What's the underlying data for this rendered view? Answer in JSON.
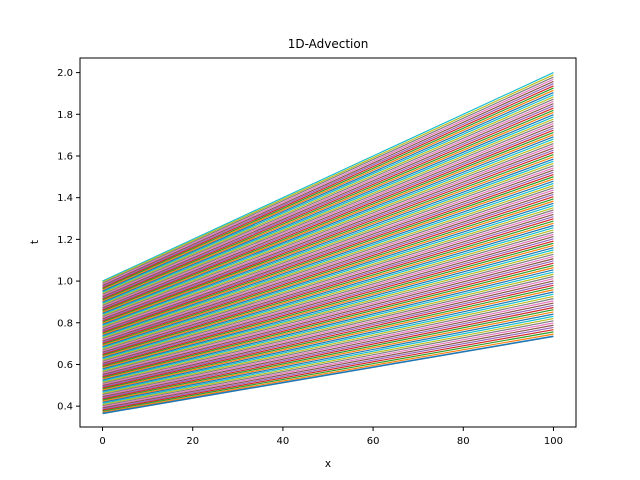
{
  "chart_data": {
    "type": "line",
    "title": "1D-Advection",
    "xlabel": "x",
    "ylabel": "t",
    "xlim": [
      -5,
      105
    ],
    "ylim": [
      0.3,
      2.07
    ],
    "xticks": [
      0,
      20,
      40,
      60,
      80,
      100
    ],
    "yticks": [
      0.4,
      0.6,
      0.8,
      1.0,
      1.2,
      1.4,
      1.6,
      1.8,
      2.0
    ],
    "ytick_labels": [
      "0.4",
      "0.6",
      "0.8",
      "1.0",
      "1.2",
      "1.4",
      "1.6",
      "1.8",
      "2.0"
    ],
    "grid": false,
    "legend": "none",
    "series_colors": [
      "#1f77b4",
      "#ff7f0e",
      "#2ca02c",
      "#d62728",
      "#9467bd",
      "#8c564b",
      "#e377c2",
      "#7f7f7f",
      "#bcbd22",
      "#17becf"
    ],
    "characteristics": {
      "x_range": [
        0,
        100
      ],
      "start_at_x0": [
        0.365,
        1.0
      ],
      "end_at_x100": [
        0.735,
        2.0
      ],
      "line_count": 120
    }
  }
}
